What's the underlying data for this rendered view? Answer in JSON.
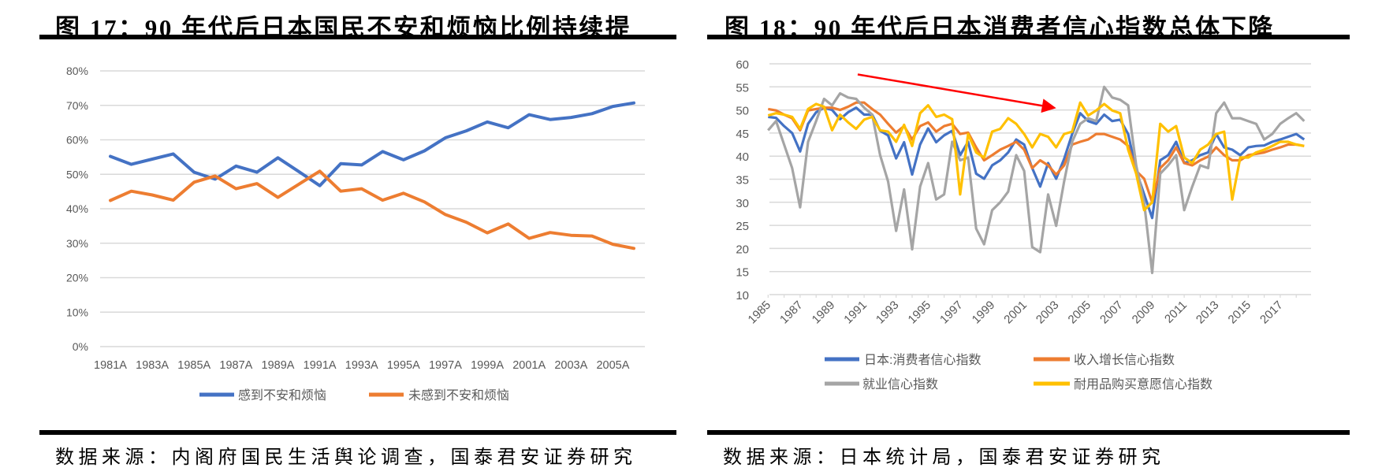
{
  "left": {
    "title": "图 17：90 年代后日本国民不安和烦恼比例持续提",
    "source": "数据来源：内阁府国民生活舆论调查，国泰君安证券研究"
  },
  "right": {
    "title": "图 18：90 年代后日本消费者信心指数总体下降",
    "source": "数据来源：日本统计局，国泰君安证券研究"
  },
  "chart_data": [
    {
      "type": "line",
      "title": "",
      "x": [
        "1981A",
        "1982A",
        "1983A",
        "1984A",
        "1985A",
        "1986A",
        "1987A",
        "1988A",
        "1989A",
        "1990A",
        "1991A",
        "1992A",
        "1993A",
        "1994A",
        "1995A",
        "1996A",
        "1997A",
        "1998A",
        "1999A",
        "2000A",
        "2001A",
        "2002A",
        "2003A",
        "2004A",
        "2005A",
        "2006A"
      ],
      "x_tick_labels": [
        "1981A",
        "1983A",
        "1985A",
        "1987A",
        "1989A",
        "1991A",
        "1993A",
        "1995A",
        "1997A",
        "1999A",
        "2001A",
        "2003A",
        "2005A"
      ],
      "y_tick_labels": [
        "0%",
        "10%",
        "20%",
        "30%",
        "40%",
        "50%",
        "60%",
        "70%",
        "80%"
      ],
      "ylim": [
        0,
        80
      ],
      "y_unit": "%",
      "grid": true,
      "legend": "bottom",
      "series": [
        {
          "name": "感到不安和烦恼",
          "color": "#4472C4",
          "values": [
            55.2,
            52.9,
            54.4,
            55.9,
            50.6,
            48.6,
            52.4,
            50.6,
            54.8,
            50.8,
            46.7,
            53.1,
            52.7,
            56.6,
            54.2,
            56.8,
            60.6,
            62.6,
            65.2,
            63.5,
            67.3,
            65.9,
            66.5,
            67.6,
            69.7,
            70.7
          ]
        },
        {
          "name": "未感到不安和烦恼",
          "color": "#ED7D31",
          "values": [
            42.4,
            45.1,
            44.0,
            42.5,
            47.7,
            49.5,
            45.8,
            47.3,
            43.3,
            47.1,
            50.9,
            45.1,
            45.8,
            42.5,
            44.5,
            42.0,
            38.3,
            36.1,
            33.0,
            35.6,
            31.4,
            33.1,
            32.3,
            32.1,
            29.7,
            28.5
          ]
        }
      ]
    },
    {
      "type": "line",
      "title": "",
      "x_start": 1985.0,
      "x_step": 0.5,
      "x_tick_labels": [
        "1985",
        "1987",
        "1989",
        "1991",
        "1993",
        "1995",
        "1997",
        "1999",
        "2001",
        "2003",
        "2005",
        "2007",
        "2009",
        "2011",
        "2013",
        "2015",
        "2017"
      ],
      "y_tick_labels": [
        "10",
        "15",
        "20",
        "25",
        "30",
        "35",
        "40",
        "45",
        "50",
        "55",
        "60"
      ],
      "ylim": [
        10,
        60
      ],
      "xlim": [
        1985,
        2018.5
      ],
      "grid": true,
      "legend": "bottom",
      "annotation": {
        "type": "arrow",
        "color": "#FF0000",
        "from": [
          1990.6,
          57.7
        ],
        "to": [
          2003.0,
          50.4
        ]
      },
      "series": [
        {
          "name": "日本:消费者信心指数",
          "color": "#4472C4",
          "values": [
            48.5,
            48.3,
            46.5,
            45.0,
            41.0,
            47.0,
            49.5,
            50.5,
            50.0,
            48.0,
            49.5,
            50.5,
            49.0,
            49.0,
            45.5,
            44.5,
            39.5,
            43.0,
            36.0,
            42.5,
            46.0,
            43.0,
            44.5,
            45.5,
            40.2,
            43.1,
            36.2,
            35.1,
            38.0,
            39.1,
            40.8,
            43.6,
            42.5,
            37.4,
            33.4,
            38.5,
            35.1,
            39.4,
            44.8,
            49.3,
            47.6,
            47.0,
            49.0,
            47.6,
            47.9,
            44.8,
            36.8,
            31.7,
            26.6,
            39.1,
            40.2,
            43.1,
            38.5,
            39.1,
            40.2,
            40.8,
            44.8,
            41.9,
            41.4,
            40.2,
            41.9,
            42.2,
            42.3,
            43.1,
            43.6,
            44.2,
            44.8,
            43.6
          ]
        },
        {
          "name": "收入增长信心指数",
          "color": "#ED7D31",
          "values": [
            50.2,
            49.9,
            49.0,
            48.2,
            45.6,
            49.9,
            50.2,
            50.5,
            50.5,
            50.0,
            50.7,
            51.6,
            51.6,
            50.2,
            49.0,
            47.0,
            45.1,
            46.5,
            43.6,
            46.5,
            47.3,
            45.3,
            46.5,
            47.0,
            44.8,
            45.1,
            41.9,
            39.1,
            40.2,
            41.4,
            42.2,
            43.1,
            41.4,
            37.4,
            39.1,
            38.0,
            36.0,
            38.0,
            42.5,
            43.1,
            43.6,
            44.8,
            44.8,
            44.2,
            43.6,
            42.2,
            36.8,
            35.1,
            30.0,
            37.4,
            39.1,
            41.9,
            38.5,
            38.0,
            39.1,
            39.9,
            41.9,
            40.2,
            39.1,
            39.1,
            40.2,
            40.5,
            40.8,
            41.4,
            41.9,
            42.5,
            42.5,
            42.2
          ]
        },
        {
          "name": "就业信心指数",
          "color": "#A5A5A5",
          "values": [
            45.6,
            47.6,
            42.5,
            37.4,
            28.9,
            43.1,
            47.6,
            52.4,
            51.0,
            53.6,
            52.7,
            52.4,
            50.5,
            49.0,
            40.2,
            34.5,
            23.8,
            32.8,
            19.8,
            33.4,
            38.5,
            30.6,
            31.7,
            43.1,
            39.1,
            39.7,
            24.3,
            20.9,
            28.3,
            30.0,
            32.3,
            40.2,
            36.8,
            20.3,
            19.2,
            31.7,
            24.9,
            34.5,
            43.1,
            47.0,
            48.2,
            47.6,
            55.0,
            52.7,
            52.2,
            51.0,
            38.0,
            30.0,
            14.7,
            36.2,
            38.0,
            40.2,
            28.3,
            33.4,
            38.0,
            37.4,
            49.3,
            51.6,
            48.2,
            48.2,
            47.6,
            47.0,
            43.6,
            44.8,
            47.0,
            48.2,
            49.3,
            47.6
          ]
        },
        {
          "name": "耐用品购买意愿信心指数",
          "color": "#FFC000",
          "values": [
            48.8,
            49.3,
            49.0,
            48.5,
            45.9,
            50.2,
            51.3,
            50.7,
            45.6,
            49.0,
            47.3,
            45.9,
            47.9,
            48.5,
            45.6,
            45.3,
            43.1,
            46.8,
            42.2,
            49.3,
            51.0,
            48.5,
            49.0,
            48.0,
            31.7,
            44.8,
            40.8,
            39.7,
            45.3,
            45.9,
            48.2,
            47.0,
            44.8,
            41.9,
            44.8,
            44.2,
            41.9,
            44.8,
            45.3,
            51.6,
            48.8,
            49.9,
            51.3,
            49.9,
            49.3,
            41.4,
            36.2,
            28.3,
            30.0,
            47.0,
            45.3,
            46.5,
            39.7,
            38.5,
            41.4,
            42.5,
            44.8,
            45.3,
            30.6,
            39.7,
            39.7,
            40.8,
            41.4,
            42.2,
            43.1,
            43.1,
            42.5,
            42.2
          ]
        }
      ]
    }
  ]
}
